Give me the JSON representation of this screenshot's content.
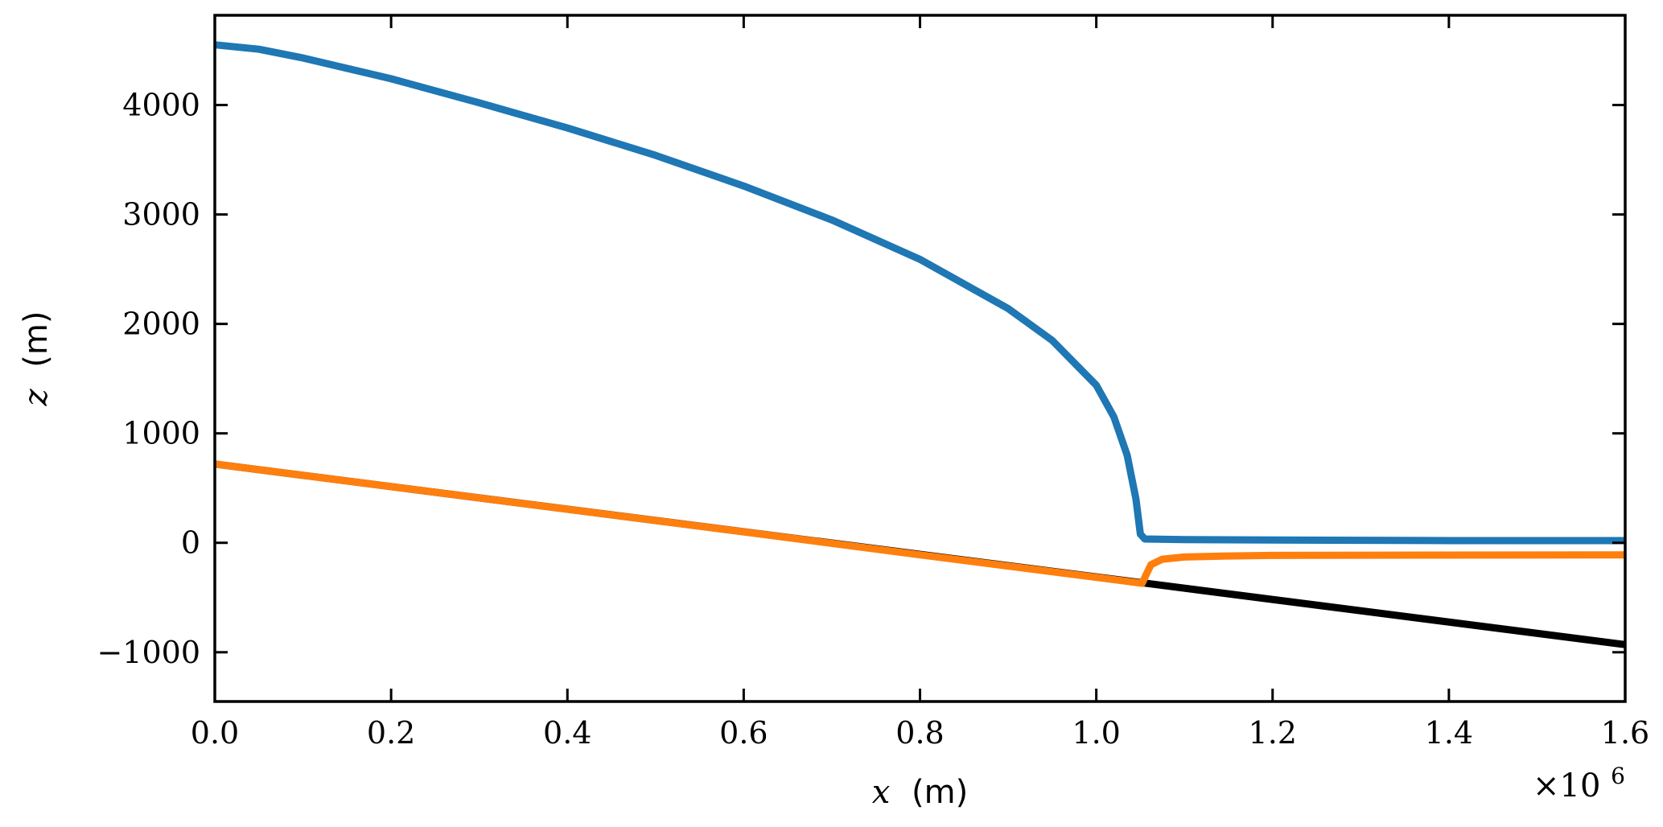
{
  "chart_data": {
    "type": "line",
    "title": "",
    "xlabel": {
      "symbol": "x",
      "unit": "(m)"
    },
    "ylabel": {
      "symbol": "z",
      "unit": "(m)"
    },
    "x_multiplier": {
      "base": "×10",
      "exponent": "6"
    },
    "xlim": [
      0,
      1600000
    ],
    "ylim": [
      -1450,
      4820
    ],
    "xticks": [
      0,
      200000,
      400000,
      600000,
      800000,
      1000000,
      1200000,
      1400000,
      1600000
    ],
    "xtick_labels": [
      "0.0",
      "0.2",
      "0.4",
      "0.6",
      "0.8",
      "1.0",
      "1.2",
      "1.4",
      "1.6"
    ],
    "yticks": [
      -1000,
      0,
      1000,
      2000,
      3000,
      4000
    ],
    "ytick_labels": [
      "−1000",
      "0",
      "1000",
      "2000",
      "3000",
      "4000"
    ],
    "grid": false,
    "series": [
      {
        "color": "#000000",
        "x": [
          0,
          1600000
        ],
        "y": [
          720,
          -930
        ]
      },
      {
        "color": "#1f77b4",
        "x": [
          0,
          50000,
          100000,
          200000,
          300000,
          400000,
          500000,
          600000,
          700000,
          800000,
          900000,
          950000,
          1000000,
          1020000,
          1035000,
          1045000,
          1050000,
          1055000,
          1100000,
          1200000,
          1400000,
          1600000
        ],
        "y": [
          4550,
          4510,
          4430,
          4240,
          4020,
          3790,
          3540,
          3260,
          2950,
          2590,
          2140,
          1850,
          1440,
          1150,
          800,
          400,
          80,
          35,
          30,
          25,
          20,
          20
        ]
      },
      {
        "color": "#ff7f0e",
        "x": [
          0,
          200000,
          400000,
          600000,
          800000,
          1000000,
          1052000,
          1056000,
          1062000,
          1075000,
          1100000,
          1150000,
          1200000,
          1400000,
          1600000
        ],
        "y": [
          720,
          513,
          307,
          100,
          -110,
          -315,
          -370,
          -300,
          -200,
          -150,
          -130,
          -120,
          -115,
          -112,
          -110
        ]
      }
    ]
  }
}
